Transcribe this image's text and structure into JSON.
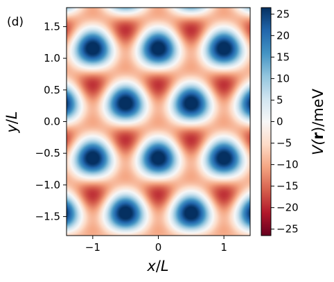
{
  "chart_data": {
    "type": "heatmap",
    "panel_label": "(d)",
    "xlabel": {
      "var": "x",
      "unit": "L"
    },
    "ylabel": {
      "var": "y",
      "unit": "L"
    },
    "xlim": [
      -1.4,
      1.4
    ],
    "ylim": [
      -1.8,
      1.8
    ],
    "x_ticks": [
      -1,
      0,
      1
    ],
    "x_tick_labels": [
      "−1",
      "0",
      "1"
    ],
    "y_ticks": [
      -1.5,
      -1.0,
      -0.5,
      0.0,
      0.5,
      1.0,
      1.5
    ],
    "y_tick_labels": [
      "−1.5",
      "−1.0",
      "−0.5",
      "0.0",
      "0.5",
      "1.0",
      "1.5"
    ],
    "colorbar": {
      "label_prefix": "V(",
      "label_bold": "r",
      "label_suffix": ")/meV",
      "vmin": -26.5,
      "vmax": 26.5,
      "colormap": "RdBu",
      "ticks": [
        25,
        20,
        15,
        10,
        5,
        0,
        -5,
        -10,
        -15,
        -20,
        -25
      ],
      "tick_labels": [
        "25",
        "20",
        "15",
        "10",
        "5",
        "0",
        "−5",
        "−10",
        "−15",
        "−20",
        "−25"
      ]
    },
    "field": {
      "description_free": true,
      "amplitude_meV": 26,
      "triangular_period_L": 1.0
    }
  },
  "colors": {
    "colormap_stops": [
      "#67001f",
      "#b2182b",
      "#d6604d",
      "#f4a582",
      "#fddbc7",
      "#f7f7f7",
      "#d1e5f0",
      "#92c5de",
      "#4393c3",
      "#2166ac",
      "#053061"
    ]
  }
}
